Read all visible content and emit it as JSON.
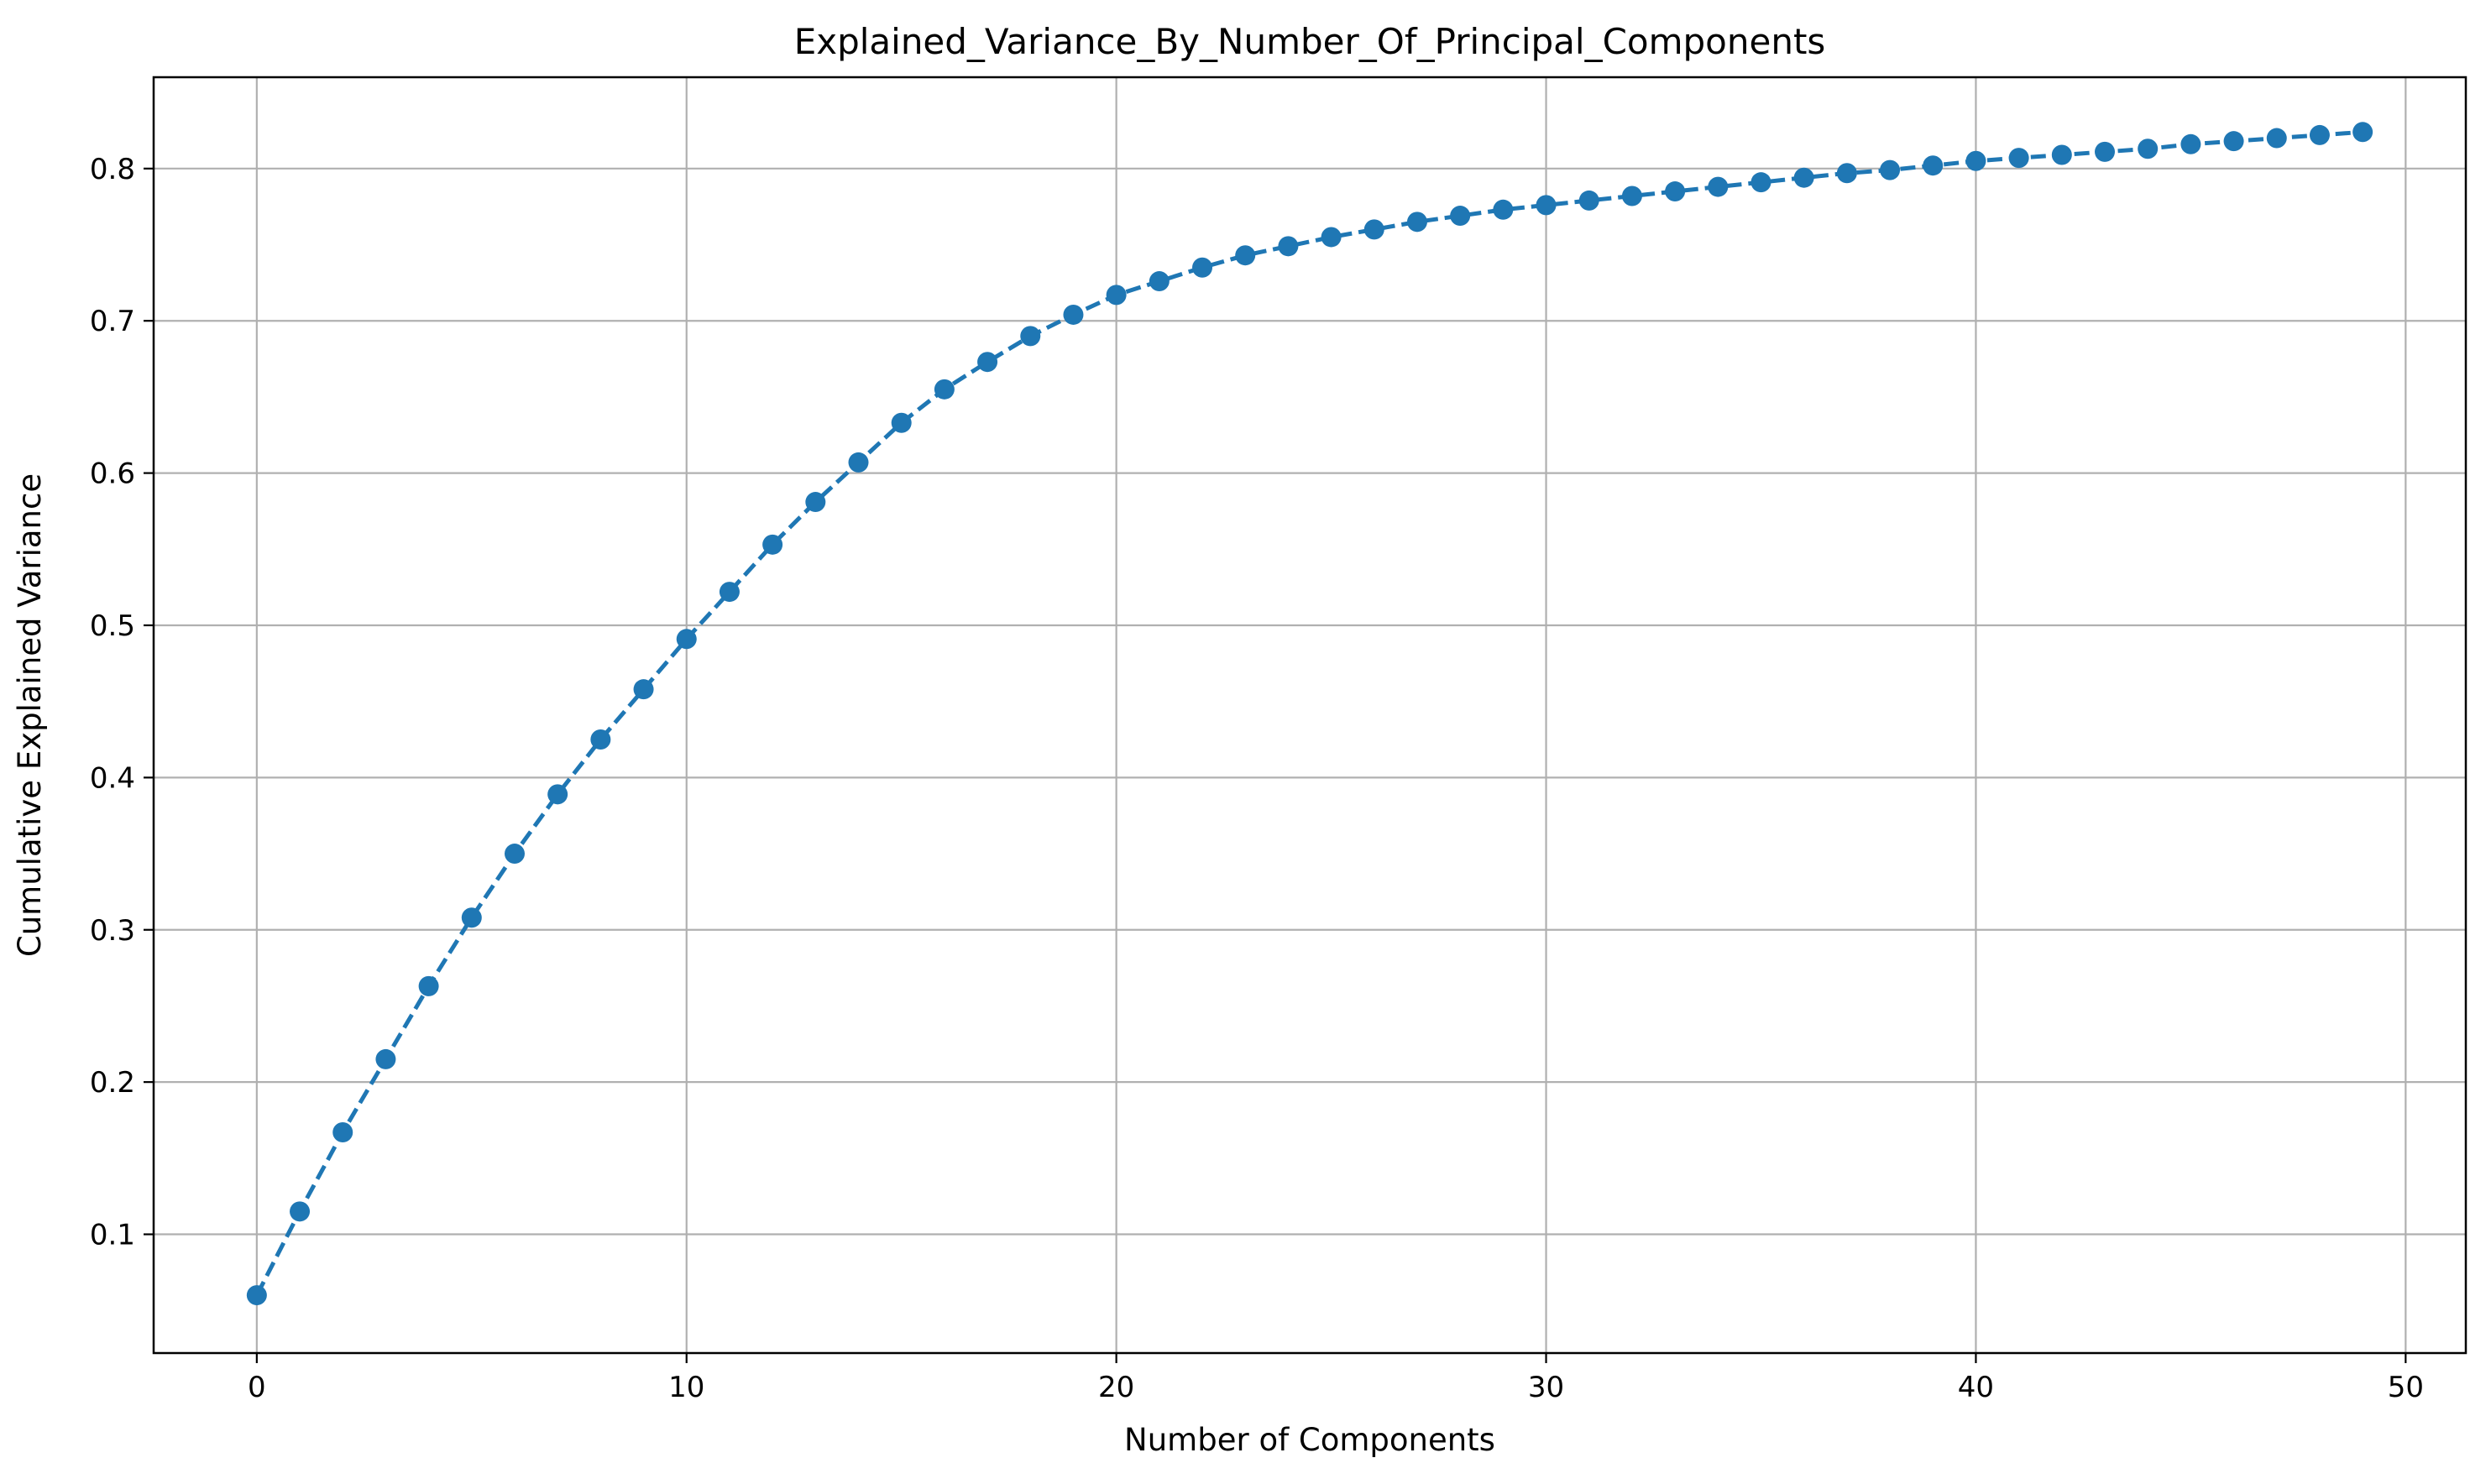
{
  "chart_data": {
    "type": "line",
    "title": "Explained_Variance_By_Number_Of_Principal_Components",
    "xlabel": "Number of Components",
    "ylabel": "Cumulative Explained Variance",
    "xlim": [
      -2.4,
      51.4
    ],
    "ylim": [
      0.022,
      0.86
    ],
    "x_ticks": [
      0,
      10,
      20,
      30,
      40,
      50
    ],
    "y_ticks": [
      0.1,
      0.2,
      0.3,
      0.4,
      0.5,
      0.6,
      0.7,
      0.8
    ],
    "x_tick_labels": [
      "0",
      "10",
      "20",
      "30",
      "40",
      "50"
    ],
    "y_tick_labels": [
      "0.1",
      "0.2",
      "0.3",
      "0.4",
      "0.5",
      "0.6",
      "0.7",
      "0.8"
    ],
    "grid": true,
    "line_style": "dashed",
    "marker": "circle",
    "series": [
      {
        "color": "#1f77b4",
        "x": [
          0,
          1,
          2,
          3,
          4,
          5,
          6,
          7,
          8,
          9,
          10,
          11,
          12,
          13,
          14,
          15,
          16,
          17,
          18,
          19,
          20,
          21,
          22,
          23,
          24,
          25,
          26,
          27,
          28,
          29,
          30,
          31,
          32,
          33,
          34,
          35,
          36,
          37,
          38,
          39,
          40,
          41,
          42,
          43,
          44,
          45,
          46,
          47,
          48,
          49
        ],
        "y": [
          0.06,
          0.115,
          0.167,
          0.215,
          0.263,
          0.308,
          0.35,
          0.389,
          0.425,
          0.458,
          0.491,
          0.522,
          0.553,
          0.581,
          0.607,
          0.633,
          0.655,
          0.673,
          0.69,
          0.704,
          0.717,
          0.726,
          0.735,
          0.743,
          0.749,
          0.755,
          0.76,
          0.765,
          0.769,
          0.773,
          0.776,
          0.779,
          0.782,
          0.785,
          0.788,
          0.791,
          0.794,
          0.797,
          0.799,
          0.802,
          0.805,
          0.807,
          0.809,
          0.811,
          0.813,
          0.816,
          0.818,
          0.82,
          0.822,
          0.824
        ]
      }
    ]
  }
}
